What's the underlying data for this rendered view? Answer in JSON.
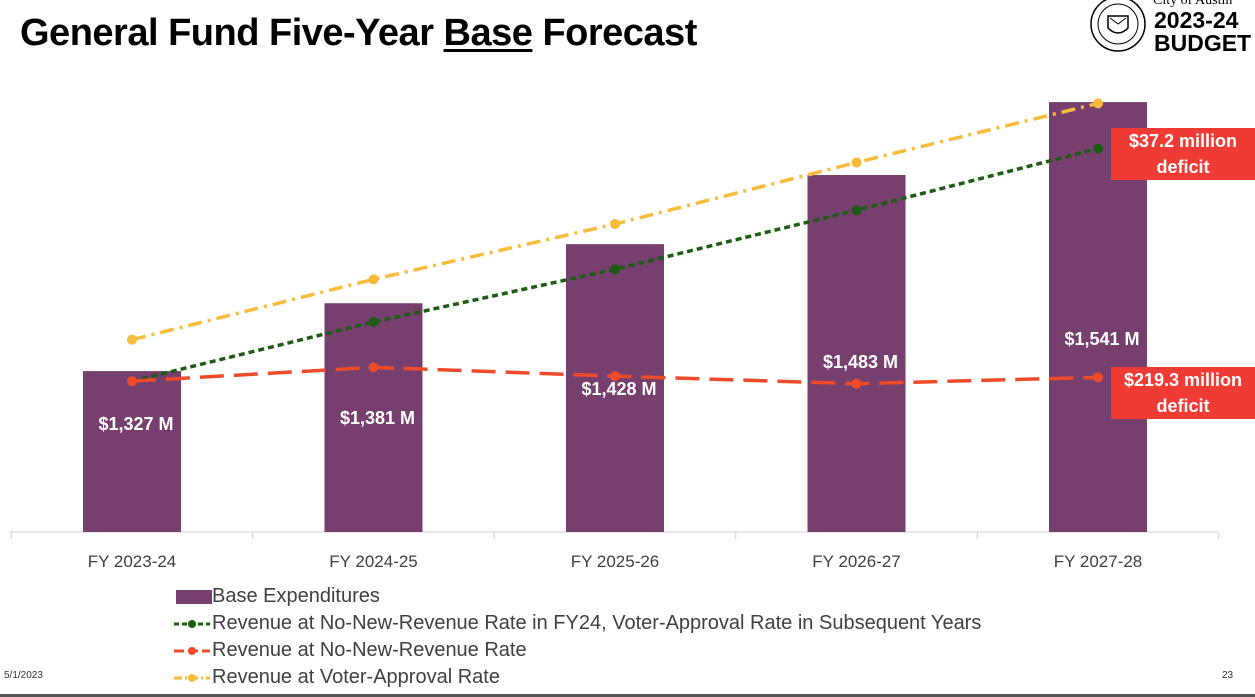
{
  "title": {
    "pre": "General Fund Five-Year ",
    "underlined": "Base",
    "post": " Forecast"
  },
  "logo": {
    "city": "City of Austin",
    "year": "2023-24",
    "label": "BUDGET",
    "seal_text": "CITY OF AUSTIN FOUNDED 1839"
  },
  "footer": {
    "date": "5/1/2023",
    "page": "23"
  },
  "callouts": [
    {
      "line1": "$37.2 million",
      "line2": "deficit"
    },
    {
      "line1": "$219.3 million",
      "line2": "deficit"
    }
  ],
  "chart_data": {
    "type": "bar",
    "categories": [
      "FY 2023-24",
      "FY 2024-25",
      "FY 2025-26",
      "FY 2026-27",
      "FY 2027-28"
    ],
    "bar_labels": [
      "$1,327 M",
      "$1,381 M",
      "$1,428 M",
      "$1,483 M",
      "$1,541 M"
    ],
    "ylim": [
      1199,
      1560
    ],
    "grid": false,
    "legend_position": "bottom",
    "series": [
      {
        "name": "Base Expenditures",
        "type": "bar",
        "color": "#763f6e",
        "values": [
          1327,
          1381,
          1428,
          1483,
          1541
        ]
      },
      {
        "name": "Revenue at No-New-Revenue Rate in FY24, Voter-Approval Rate in Subsequent Years",
        "type": "line",
        "style": "dashed",
        "color": "#1e5b14",
        "values": [
          1319,
          1366,
          1408,
          1455,
          1504
        ]
      },
      {
        "name": "Revenue at No-New-Revenue Rate",
        "type": "line",
        "style": "long-dash",
        "color": "#ee4b2b",
        "values": [
          1319,
          1330,
          1323,
          1317,
          1322
        ]
      },
      {
        "name": "Revenue at Voter-Approval Rate",
        "type": "line",
        "style": "dash-dot",
        "color": "#f7bc3b",
        "values": [
          1352,
          1400,
          1444,
          1493,
          1540
        ]
      }
    ]
  }
}
